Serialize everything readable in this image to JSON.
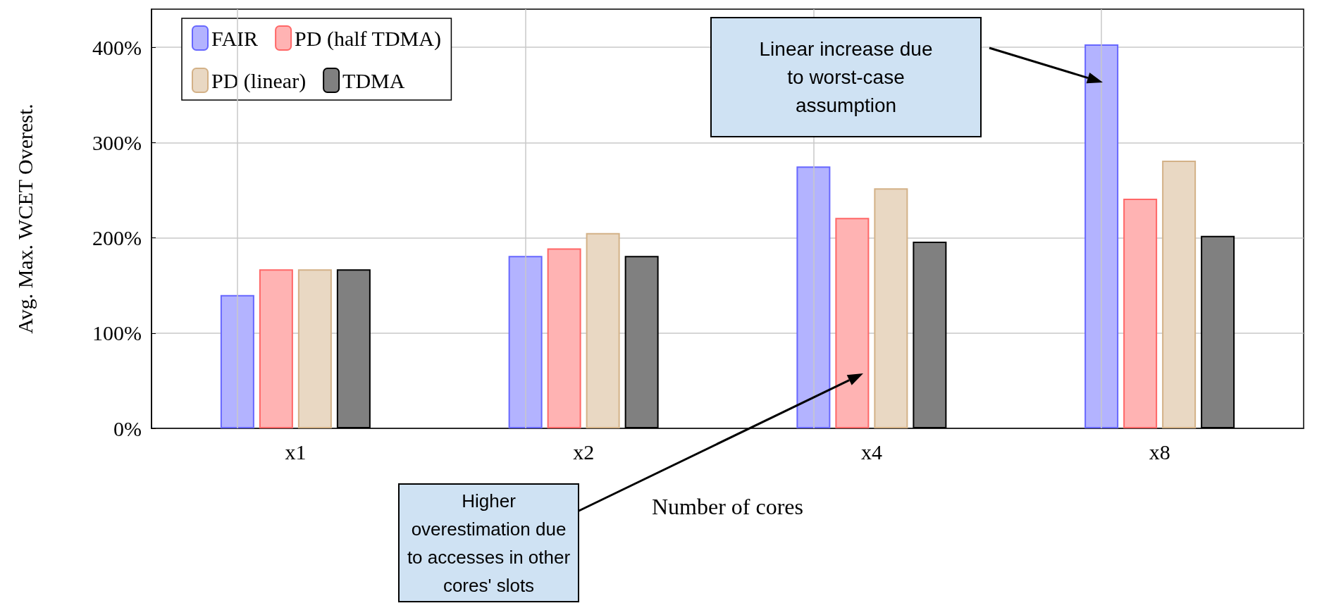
{
  "chart_data": {
    "type": "bar",
    "xlabel": "Number of cores",
    "ylabel": "Avg. Max. WCET Overest.",
    "categories": [
      "x1",
      "x2",
      "x4",
      "x8"
    ],
    "series": [
      {
        "name": "FAIR",
        "color": "#b3b3ff",
        "values": [
          140,
          181,
          275,
          403
        ]
      },
      {
        "name": "PD (half TDMA)",
        "color": "#ffb3b3",
        "values": [
          167,
          189,
          221,
          241
        ]
      },
      {
        "name": "PD (linear)",
        "color": "#e9d8c3",
        "values": [
          167,
          205,
          252,
          281
        ]
      },
      {
        "name": "TDMA",
        "color": "#808080",
        "values": [
          167,
          181,
          196,
          202
        ]
      }
    ],
    "ylim": [
      0,
      440
    ],
    "yticks": [
      {
        "value": 0,
        "label": "0%"
      },
      {
        "value": 100,
        "label": "100%"
      },
      {
        "value": 200,
        "label": "200%"
      },
      {
        "value": 300,
        "label": "300%"
      },
      {
        "value": 400,
        "label": "400%"
      }
    ],
    "grid": true,
    "legend": "top left",
    "annotations": [
      "Linear increase due to worst-case assumption",
      "Higher overestimation due to accesses in other cores' slots"
    ]
  }
}
